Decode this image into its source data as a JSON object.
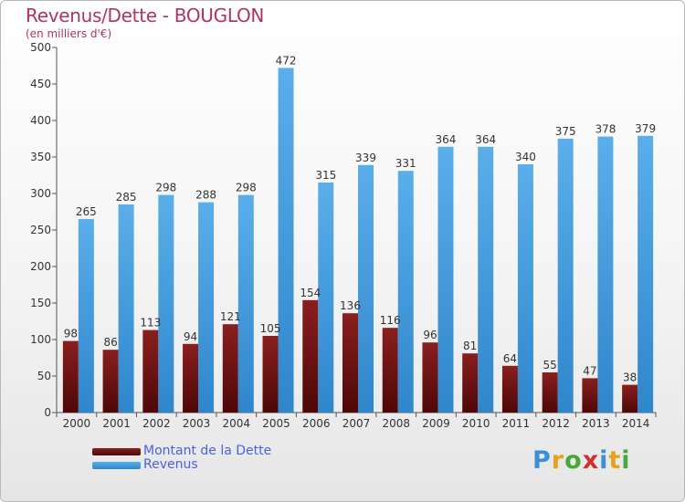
{
  "title": "Revenus/Dette - BOUGLON",
  "subtitle": "(en milliers d'€)",
  "brand": {
    "letters": [
      "P",
      "r",
      "o",
      "x",
      "i",
      "t",
      "i"
    ],
    "colors": [
      "#3a8fd8",
      "#e8a020",
      "#4aa83a",
      "#d03030",
      "#3a8fd8",
      "#e8a020",
      "#4aa83a"
    ]
  },
  "chart_data": {
    "type": "bar",
    "categories": [
      "2000",
      "2001",
      "2002",
      "2003",
      "2004",
      "2005",
      "2006",
      "2007",
      "2008",
      "2009",
      "2010",
      "2011",
      "2012",
      "2013",
      "2014"
    ],
    "series": [
      {
        "name": "Montant de la Dette",
        "color": "#8a1a1a",
        "values": [
          98,
          86,
          113,
          94,
          121,
          105,
          154,
          136,
          116,
          96,
          81,
          64,
          55,
          47,
          38
        ]
      },
      {
        "name": "Revenus",
        "color": "#4aa3e3",
        "values": [
          265,
          285,
          298,
          288,
          298,
          472,
          315,
          339,
          331,
          364,
          364,
          340,
          375,
          378,
          379
        ]
      }
    ],
    "ylim": [
      0,
      500
    ],
    "yticks": [
      0,
      50,
      100,
      150,
      200,
      250,
      300,
      350,
      400,
      450,
      500
    ],
    "grid": false,
    "legend_position": "bottom-left"
  }
}
